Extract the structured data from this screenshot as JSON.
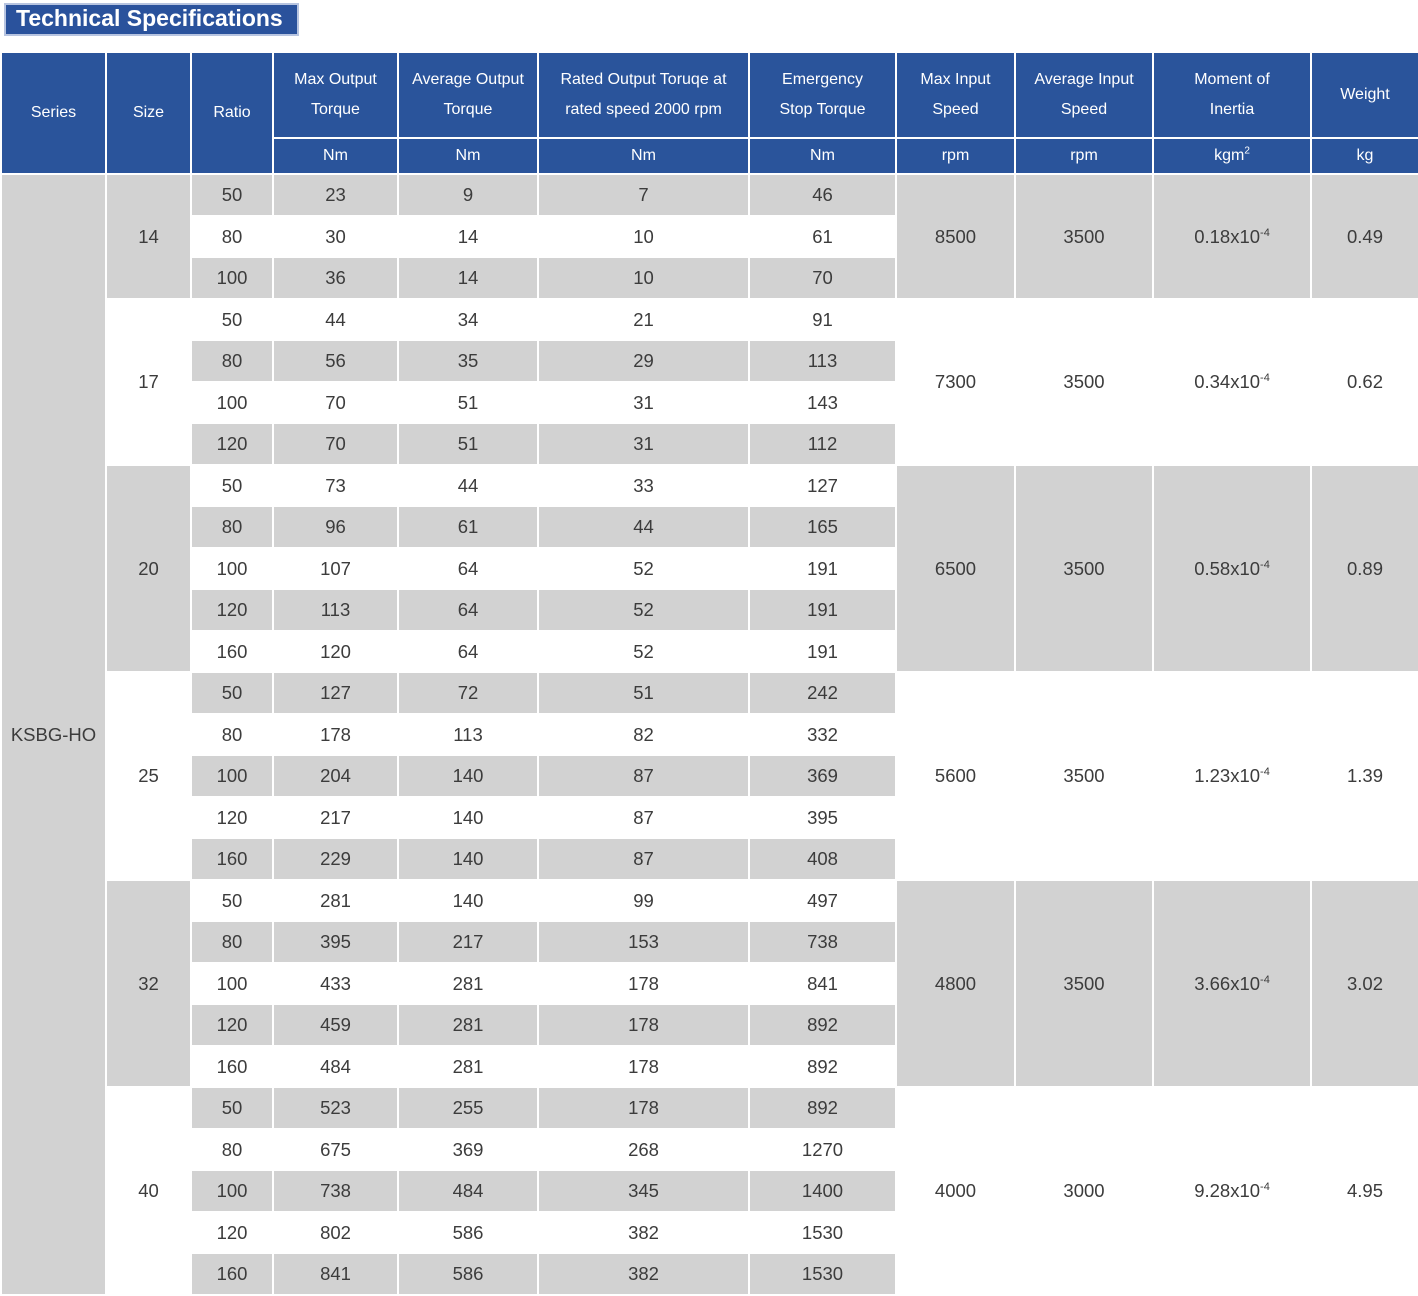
{
  "title": "Technical Specifications",
  "colors": {
    "header_blue": "#2a549b",
    "title_blue": "#2a529c",
    "title_border": "#b7c4e0",
    "row_gray": "#d2d2d2",
    "row_white": "#ffffff",
    "text_dark": "#3c3c3c"
  },
  "header": {
    "plain_columns": [
      {
        "key": "series",
        "label": "Series"
      },
      {
        "key": "size",
        "label": "Size"
      },
      {
        "key": "ratio",
        "label": "Ratio"
      }
    ],
    "unit_columns": [
      {
        "key": "max-output-torque",
        "label_lines": [
          "Max Output",
          "Torque"
        ],
        "unit": "Nm"
      },
      {
        "key": "average-output-torque",
        "label_lines": [
          "Average Output",
          "Torque"
        ],
        "unit": "Nm"
      },
      {
        "key": "rated-output-torque",
        "label_lines": [
          "Rated Output Toruqe at",
          "rated speed 2000 rpm"
        ],
        "unit": "Nm"
      },
      {
        "key": "emergency-stop-torque",
        "label_lines": [
          "Emergency",
          "Stop Torque"
        ],
        "unit": "Nm"
      },
      {
        "key": "max-input-speed",
        "label_lines": [
          "Max Input",
          "Speed"
        ],
        "unit": "rpm"
      },
      {
        "key": "average-input-speed",
        "label_lines": [
          "Average Input",
          "Speed"
        ],
        "unit": "rpm"
      },
      {
        "key": "moment-of-inertia",
        "label_lines": [
          "Moment of",
          "Inertia"
        ],
        "unit": "kgm",
        "unit_sup": "2"
      },
      {
        "key": "weight",
        "label_lines": [
          "Weight"
        ],
        "unit": "kg"
      }
    ]
  },
  "series_label": "KSBG-HO",
  "value_column_keys": [
    "ratio",
    "max-output-torque",
    "average-output-torque",
    "rated-output-torque",
    "emergency-stop-torque"
  ],
  "groups": [
    {
      "size": "14",
      "rows": [
        [
          "50",
          "23",
          "9",
          "7",
          "46"
        ],
        [
          "80",
          "30",
          "14",
          "10",
          "61"
        ],
        [
          "100",
          "36",
          "14",
          "10",
          "70"
        ]
      ],
      "max_input_speed": "8500",
      "avg_input_speed": "3500",
      "inertia": {
        "base": "0.18x10",
        "exp": "-4"
      },
      "weight": "0.49"
    },
    {
      "size": "17",
      "rows": [
        [
          "50",
          "44",
          "34",
          "21",
          "91"
        ],
        [
          "80",
          "56",
          "35",
          "29",
          "113"
        ],
        [
          "100",
          "70",
          "51",
          "31",
          "143"
        ],
        [
          "120",
          "70",
          "51",
          "31",
          "112"
        ]
      ],
      "max_input_speed": "7300",
      "avg_input_speed": "3500",
      "inertia": {
        "base": "0.34x10",
        "exp": "-4"
      },
      "weight": "0.62"
    },
    {
      "size": "20",
      "rows": [
        [
          "50",
          "73",
          "44",
          "33",
          "127"
        ],
        [
          "80",
          "96",
          "61",
          "44",
          "165"
        ],
        [
          "100",
          "107",
          "64",
          "52",
          "191"
        ],
        [
          "120",
          "113",
          "64",
          "52",
          "191"
        ],
        [
          "160",
          "120",
          "64",
          "52",
          "191"
        ]
      ],
      "max_input_speed": "6500",
      "avg_input_speed": "3500",
      "inertia": {
        "base": "0.58x10",
        "exp": "-4"
      },
      "weight": "0.89"
    },
    {
      "size": "25",
      "rows": [
        [
          "50",
          "127",
          "72",
          "51",
          "242"
        ],
        [
          "80",
          "178",
          "113",
          "82",
          "332"
        ],
        [
          "100",
          "204",
          "140",
          "87",
          "369"
        ],
        [
          "120",
          "217",
          "140",
          "87",
          "395"
        ],
        [
          "160",
          "229",
          "140",
          "87",
          "408"
        ]
      ],
      "max_input_speed": "5600",
      "avg_input_speed": "3500",
      "inertia": {
        "base": "1.23x10",
        "exp": "-4"
      },
      "weight": "1.39"
    },
    {
      "size": "32",
      "rows": [
        [
          "50",
          "281",
          "140",
          "99",
          "497"
        ],
        [
          "80",
          "395",
          "217",
          "153",
          "738"
        ],
        [
          "100",
          "433",
          "281",
          "178",
          "841"
        ],
        [
          "120",
          "459",
          "281",
          "178",
          "892"
        ],
        [
          "160",
          "484",
          "281",
          "178",
          "892"
        ]
      ],
      "max_input_speed": "4800",
      "avg_input_speed": "3500",
      "inertia": {
        "base": "3.66x10",
        "exp": "-4"
      },
      "weight": "3.02"
    },
    {
      "size": "40",
      "rows": [
        [
          "50",
          "523",
          "255",
          "178",
          "892"
        ],
        [
          "80",
          "675",
          "369",
          "268",
          "1270"
        ],
        [
          "100",
          "738",
          "484",
          "345",
          "1400"
        ],
        [
          "120",
          "802",
          "586",
          "382",
          "1530"
        ],
        [
          "160",
          "841",
          "586",
          "382",
          "1530"
        ]
      ],
      "max_input_speed": "4000",
      "avg_input_speed": "3000",
      "inertia": {
        "base": "9.28x10",
        "exp": "-4"
      },
      "weight": "4.95"
    }
  ]
}
